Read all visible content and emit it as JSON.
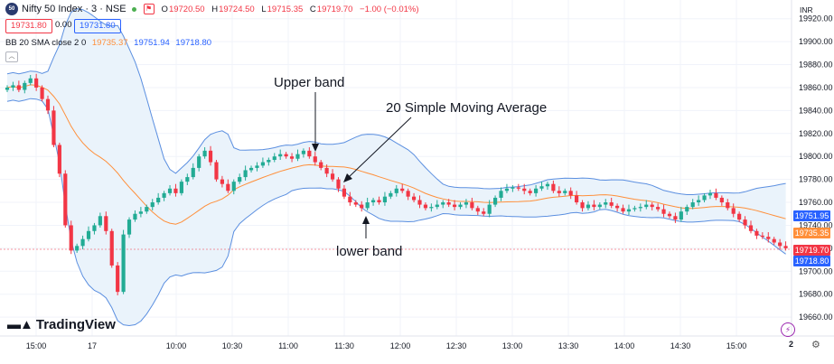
{
  "header": {
    "logo_text": "50",
    "symbol": "Nifty 50 Index · 3 · NSE",
    "open_key": "O",
    "open": "19720.50",
    "high_key": "H",
    "high": "19724.50",
    "low_key": "L",
    "low": "19715.35",
    "close_key": "C",
    "close": "19719.70",
    "change": "−1.00 (−0.01%)",
    "bid": "19731.80",
    "spread": "0.00",
    "ask": "19731.80",
    "currency": "INR"
  },
  "indicator": {
    "name": "BB 20 SMA close 2 0",
    "basis": "19735.37",
    "upper": "19751.94",
    "lower": "19718.80"
  },
  "price_tags": {
    "upper": "19751.95",
    "basis": "19735.35",
    "last": "19719.70",
    "lower": "19718.80"
  },
  "annotations": {
    "upper": "Upper band",
    "sma": "20 Simple Moving Average",
    "lower": "lower band"
  },
  "branding": {
    "name": "TradingView"
  },
  "bottom_right": {
    "time_btn": "2"
  },
  "colors": {
    "up": "#22ab94",
    "down": "#f23645",
    "basis": "#ff8f3a",
    "band": "#5b8fe0",
    "fill": "#eaf3fb"
  },
  "chart_data": {
    "type": "candlestick",
    "y_ticks": [
      19920,
      19900,
      19880,
      19860,
      19840,
      19820,
      19800,
      19780,
      19760,
      19740,
      19720,
      19700,
      19680,
      19660
    ],
    "y_tick_labels": [
      "19920.00",
      "19900.00",
      "19880.00",
      "19860.00",
      "19840.00",
      "19820.00",
      "19800.00",
      "19780.00",
      "19760.00",
      "19740.00",
      "19720.00",
      "19700.00",
      "19680.00",
      "19660.00"
    ],
    "ylim": [
      19653,
      19930
    ],
    "x_ticks": [
      0,
      20,
      50,
      70,
      90,
      110,
      130,
      150,
      170,
      190,
      210,
      230,
      250
    ],
    "x_tick_labels": [
      "15:00",
      "17",
      "10:00",
      "10:30",
      "11:00",
      "11:30",
      "12:00",
      "12:30",
      "13:00",
      "13:30",
      "14:00",
      "14:30",
      "15:00"
    ],
    "candles_close": [
      19860,
      19862,
      19858,
      19864,
      19868,
      19860,
      19850,
      19840,
      19810,
      19785,
      19740,
      19718,
      19722,
      19728,
      19735,
      19740,
      19748,
      19735,
      19705,
      19682,
      19732,
      19745,
      19750,
      19752,
      19756,
      19760,
      19764,
      19768,
      19772,
      19768,
      19778,
      19782,
      19790,
      19800,
      19805,
      19795,
      19780,
      19776,
      19770,
      19778,
      19782,
      19788,
      19790,
      19792,
      19795,
      19797,
      19800,
      19802,
      19800,
      19798,
      19802,
      19805,
      19800,
      19795,
      19790,
      19785,
      19780,
      19772,
      19765,
      19760,
      19758,
      19755,
      19760,
      19762,
      19760,
      19765,
      19768,
      19772,
      19770,
      19765,
      19762,
      19758,
      19755,
      19756,
      19758,
      19760,
      19758,
      19756,
      19758,
      19760,
      19755,
      19752,
      19750,
      19758,
      19764,
      19770,
      19772,
      19773,
      19772,
      19770,
      19768,
      19772,
      19774,
      19776,
      19770,
      19768,
      19770,
      19766,
      19760,
      19755,
      19758,
      19756,
      19758,
      19760,
      19757,
      19755,
      19752,
      19754,
      19755,
      19756,
      19758,
      19756,
      19754,
      19750,
      19748,
      19745,
      19752,
      19756,
      19760,
      19762,
      19766,
      19768,
      19764,
      19760,
      19755,
      19750,
      19745,
      19740,
      19735,
      19731,
      19730,
      19728,
      19725,
      19722,
      19720
    ],
    "basis_label": "19735.37",
    "upper_label": "19751.94",
    "lower_label": "19718.80"
  }
}
